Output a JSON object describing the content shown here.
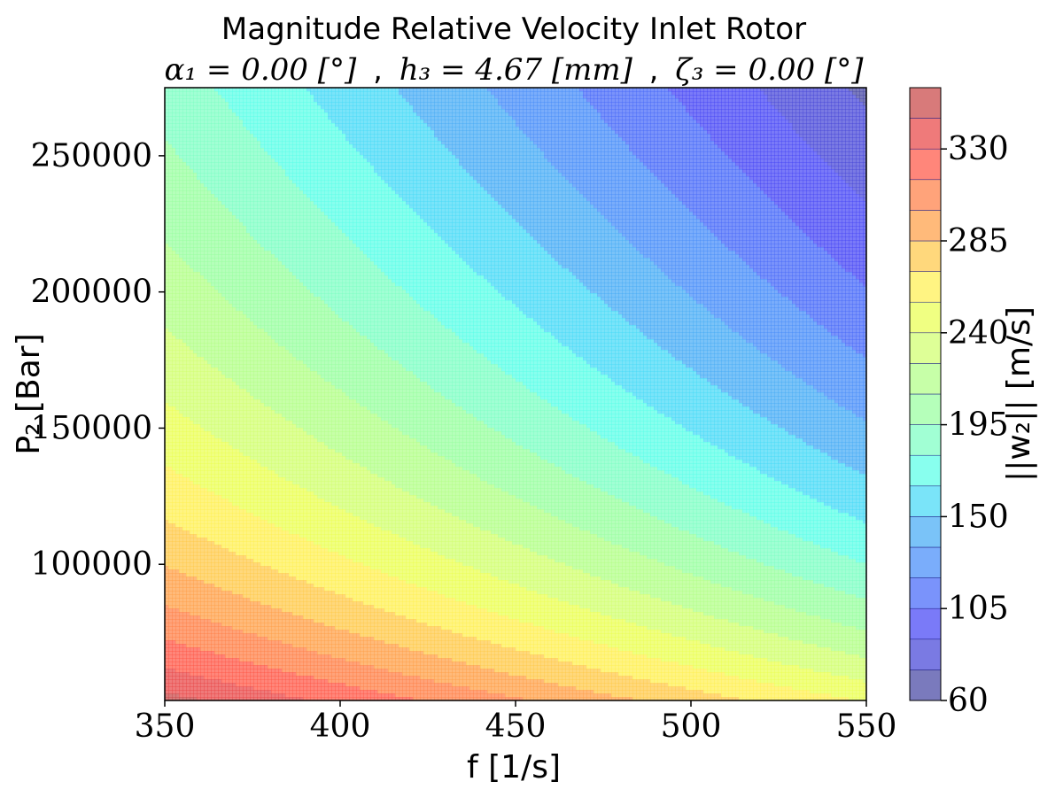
{
  "chart_data": {
    "type": "contour",
    "title": "Magnitude Relative Velocity Inlet Rotor",
    "subtitle": {
      "alpha_label": "α₁ = 0.00 [°]",
      "h_label": "h₃ = 4.67 [mm]",
      "zeta_label": "ζ₃ = 0.00 [°]",
      "separator": ","
    },
    "xlabel": "f [1/s]",
    "ylabel": "P₂ [Bar]",
    "colorbar_label": "||w₂|| [m/s]",
    "xlim": [
      350,
      550
    ],
    "ylim": [
      50000,
      275000
    ],
    "x_ticks": [
      "350",
      "400",
      "450",
      "500",
      "550"
    ],
    "y_ticks": [
      "100000",
      "150000",
      "200000",
      "250000"
    ],
    "colorbar_ticks": [
      "60",
      "105",
      "150",
      "195",
      "240",
      "285",
      "330"
    ],
    "levels": [
      60,
      75,
      90,
      105,
      120,
      135,
      150,
      165,
      180,
      195,
      210,
      225,
      240,
      255,
      270,
      285,
      300,
      315,
      330,
      345,
      360
    ],
    "level_colors": [
      "#4646a4",
      "#4646d8",
      "#4646f5",
      "#4669fa",
      "#468dfa",
      "#46acf5",
      "#46d9f7",
      "#5affe7",
      "#7dffc3",
      "#99ff9f",
      "#b1ff86",
      "#d1ff6f",
      "#eaff52",
      "#fff052",
      "#ffc94a",
      "#ff9f46",
      "#ff7f46",
      "#ff5846",
      "#e94646",
      "#c94646"
    ],
    "alpha": 0.72,
    "samples": [
      {
        "f": 350,
        "P": 50000,
        "w": 347
      },
      {
        "f": 350,
        "P": 150000,
        "w": 250
      },
      {
        "f": 350,
        "P": 275000,
        "w": 185
      },
      {
        "f": 450,
        "P": 100000,
        "w": 240
      },
      {
        "f": 450,
        "P": 200000,
        "w": 160
      },
      {
        "f": 550,
        "P": 50000,
        "w": 250
      },
      {
        "f": 550,
        "P": 150000,
        "w": 142
      },
      {
        "f": 550,
        "P": 275000,
        "w": 68
      }
    ]
  }
}
